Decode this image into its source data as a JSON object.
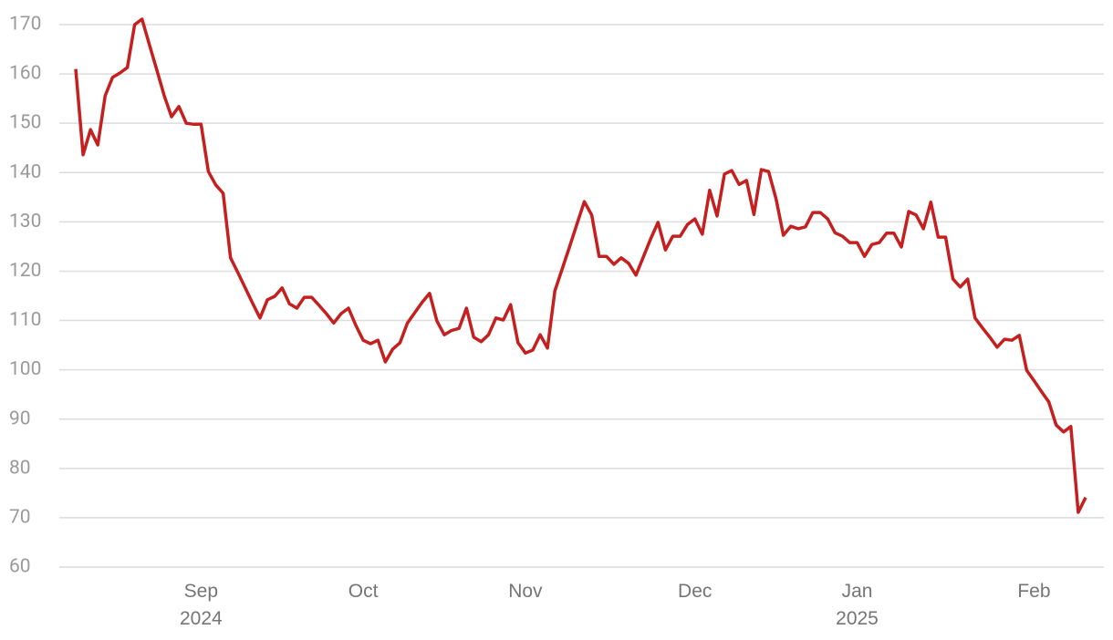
{
  "chart_data": {
    "type": "line",
    "color": "#c4201f",
    "grid": true,
    "ylim": [
      60,
      171.1
    ],
    "yticks": [
      60,
      70,
      80,
      90,
      100,
      110,
      120,
      130,
      140,
      150,
      160,
      170
    ],
    "categories": [
      null,
      null,
      null,
      null,
      null,
      null,
      null,
      null,
      null,
      null,
      null,
      null,
      null,
      null,
      null,
      null,
      null,
      "Sep\n2024",
      null,
      null,
      null,
      null,
      null,
      null,
      null,
      null,
      null,
      null,
      null,
      null,
      null,
      null,
      null,
      null,
      null,
      null,
      null,
      null,
      null,
      "Oct",
      null,
      null,
      null,
      null,
      null,
      null,
      null,
      null,
      null,
      null,
      null,
      null,
      null,
      null,
      null,
      null,
      null,
      null,
      null,
      null,
      null,
      "Nov",
      null,
      null,
      null,
      null,
      null,
      null,
      null,
      null,
      null,
      null,
      null,
      null,
      null,
      null,
      null,
      null,
      null,
      null,
      null,
      null,
      null,
      null,
      "Dec",
      null,
      null,
      null,
      null,
      null,
      null,
      null,
      null,
      null,
      null,
      null,
      null,
      null,
      null,
      null,
      null,
      null,
      null,
      null,
      null,
      null,
      "Jan\n2025",
      null,
      null,
      null,
      null,
      null,
      null,
      null,
      null,
      null,
      null,
      null,
      null,
      null,
      null,
      null,
      null,
      null,
      null,
      null,
      null,
      null,
      null,
      null,
      "Feb",
      null,
      null,
      null,
      null,
      null,
      null,
      null
    ],
    "values": [
      161,
      143.6,
      148.7,
      145.6,
      155.6,
      159.3,
      160.2,
      161.3,
      170,
      171.1,
      165.9,
      160.8,
      155.6,
      151.3,
      153.4,
      150,
      149.8,
      149.8,
      140.2,
      137.5,
      135.8,
      122.7,
      119.7,
      116.6,
      113.5,
      110.5,
      114.2,
      114.9,
      116.6,
      113.4,
      112.5,
      114.7,
      114.7,
      113.1,
      111.4,
      109.5,
      111.4,
      112.5,
      109,
      106,
      105.3,
      106,
      101.6,
      104.2,
      105.5,
      109.5,
      111.6,
      113.7,
      115.5,
      109.9,
      107.1,
      108,
      108.4,
      112.5,
      106.6,
      105.7,
      107.1,
      110.5,
      110.1,
      113.2,
      105.5,
      103.4,
      104,
      107.1,
      104.4,
      116,
      120.5,
      125,
      129.6,
      134.1,
      131.4,
      123,
      123,
      121.4,
      122.7,
      121.6,
      119.2,
      122.9,
      126.6,
      129.9,
      124.3,
      127.1,
      127.1,
      129.5,
      130.6,
      127.5,
      136.4,
      131.2,
      139.7,
      140.4,
      137.6,
      138.4,
      131.5,
      140.6,
      140.2,
      134.7,
      127.3,
      129.1,
      128.6,
      129,
      131.9,
      131.9,
      130.6,
      127.8,
      127.1,
      125.8,
      125.8,
      123,
      125.4,
      125.8,
      127.7,
      127.7,
      124.9,
      132.1,
      131.4,
      128.6,
      134,
      126.9,
      126.9,
      118.4,
      116.8,
      118.4,
      110.5,
      108.5,
      106.6,
      104.6,
      106.2,
      106,
      107,
      99.9,
      97.8,
      95.6,
      93.5,
      88.8,
      87.4,
      88.5,
      71.1,
      74.1
    ]
  }
}
